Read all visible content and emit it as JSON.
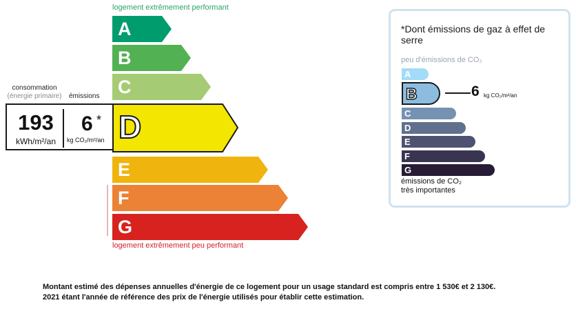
{
  "energy": {
    "top_label": "logement extrêmement performant",
    "bottom_label": "logement extrêmement peu performant",
    "classes": [
      {
        "letter": "A",
        "color": "#009c6d"
      },
      {
        "letter": "B",
        "color": "#52b153"
      },
      {
        "letter": "C",
        "color": "#a5cc74"
      },
      {
        "letter": "D",
        "color": "#f3e600"
      },
      {
        "letter": "E",
        "color": "#f0b40f"
      },
      {
        "letter": "F",
        "color": "#eb8235"
      },
      {
        "letter": "G",
        "color": "#d7221f"
      }
    ],
    "selected": "D"
  },
  "consumption": {
    "label": "consommation",
    "sublabel": "(énergie primaire)",
    "value": "193",
    "unit": "kWh/m²/an"
  },
  "emissions": {
    "label": "émissions",
    "value": "6",
    "asterisk": "*",
    "unit": "kg CO₂/m²/an"
  },
  "ges": {
    "title": "*Dont émissions de gaz à effet de serre",
    "top_label": "peu d'émissions de CO₂",
    "bottom_label_1": "émissions de CO₂",
    "bottom_label_2": "très importantes",
    "classes": [
      {
        "letter": "A",
        "color": "#a4dbf8"
      },
      {
        "letter": "B",
        "color": "#8cbde0"
      },
      {
        "letter": "C",
        "color": "#7592b3"
      },
      {
        "letter": "D",
        "color": "#61718d"
      },
      {
        "letter": "E",
        "color": "#4d5271"
      },
      {
        "letter": "F",
        "color": "#393551"
      },
      {
        "letter": "G",
        "color": "#281b35"
      }
    ],
    "selected": "B",
    "value": "6",
    "unit": "kg CO₂/m²/an"
  },
  "footer": {
    "line1": "Montant estimé des dépenses annuelles d'énergie de ce logement pour un usage standard est compris entre 1 530€ et 2 130€.",
    "line2": "2021 étant l'année de référence des prix de l'énergie utilisés pour établir cette estimation."
  }
}
